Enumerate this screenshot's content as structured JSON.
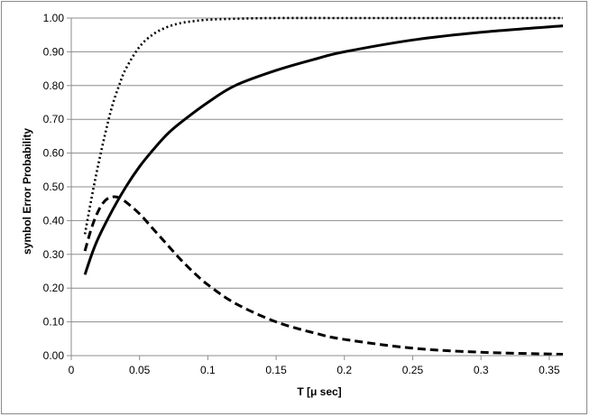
{
  "chart_data": {
    "type": "line",
    "title": "",
    "xlabel": "T  [μ sec]",
    "ylabel": "symbol Error Probability",
    "xlim": [
      0,
      0.36
    ],
    "ylim": [
      0,
      1.0
    ],
    "grid": {
      "horizontal": true,
      "vertical": false
    },
    "legend": "none",
    "x_ticks": [
      "0",
      "0.05",
      "0.1",
      "0.15",
      "0.2",
      "0.25",
      "0.3",
      "0.35"
    ],
    "y_ticks": [
      "0.00",
      "0.10",
      "0.20",
      "0.30",
      "0.40",
      "0.50",
      "0.60",
      "0.70",
      "0.80",
      "0.90",
      "1.00"
    ],
    "series": [
      {
        "style": "dotted",
        "color": "#000000",
        "x": [
          0.01,
          0.015,
          0.02,
          0.025,
          0.03,
          0.035,
          0.04,
          0.05,
          0.06,
          0.07,
          0.08,
          0.09,
          0.1,
          0.12,
          0.15,
          0.2,
          0.25,
          0.3,
          0.36
        ],
        "y": [
          0.36,
          0.47,
          0.57,
          0.66,
          0.74,
          0.8,
          0.85,
          0.915,
          0.952,
          0.973,
          0.985,
          0.991,
          0.995,
          0.998,
          1.0,
          1.0,
          1.0,
          1.0,
          1.0
        ]
      },
      {
        "style": "solid",
        "color": "#000000",
        "x": [
          0.01,
          0.015,
          0.02,
          0.03,
          0.04,
          0.05,
          0.06,
          0.07,
          0.08,
          0.1,
          0.12,
          0.15,
          0.18,
          0.2,
          0.25,
          0.3,
          0.36
        ],
        "y": [
          0.24,
          0.3,
          0.35,
          0.43,
          0.5,
          0.56,
          0.61,
          0.655,
          0.69,
          0.75,
          0.8,
          0.845,
          0.88,
          0.9,
          0.935,
          0.958,
          0.977
        ]
      },
      {
        "style": "dashed",
        "color": "#000000",
        "x": [
          0.01,
          0.015,
          0.02,
          0.025,
          0.03,
          0.035,
          0.04,
          0.05,
          0.06,
          0.07,
          0.08,
          0.09,
          0.1,
          0.12,
          0.15,
          0.18,
          0.2,
          0.25,
          0.3,
          0.36
        ],
        "y": [
          0.31,
          0.38,
          0.43,
          0.46,
          0.47,
          0.468,
          0.455,
          0.42,
          0.375,
          0.33,
          0.285,
          0.245,
          0.21,
          0.155,
          0.1,
          0.065,
          0.048,
          0.022,
          0.01,
          0.004
        ]
      }
    ]
  }
}
